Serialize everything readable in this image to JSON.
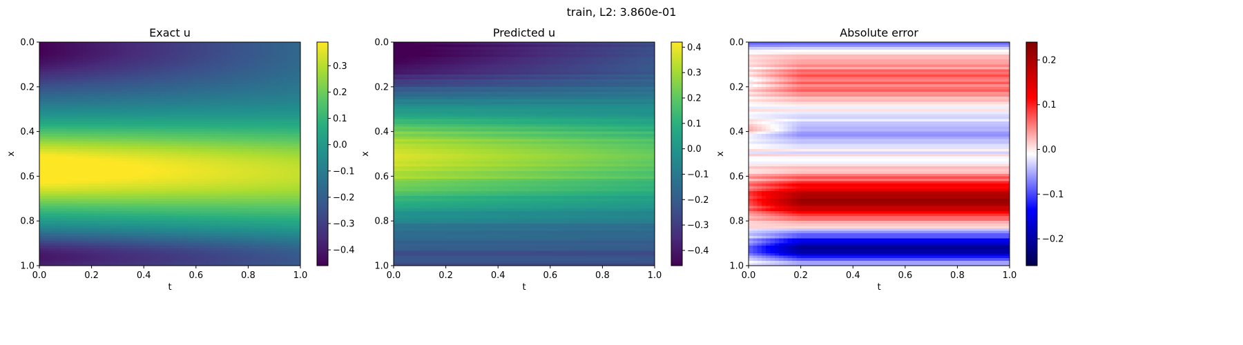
{
  "figure": {
    "suptitle": "train, L2: 3.860e-01"
  },
  "chart_data": [
    {
      "type": "heatmap",
      "title": "Exact u",
      "xlabel": "t",
      "ylabel": "x",
      "x_ticks": [
        "0.0",
        "0.2",
        "0.4",
        "0.6",
        "0.8",
        "1.0"
      ],
      "y_ticks": [
        "0.0",
        "0.2",
        "0.4",
        "0.6",
        "0.8",
        "1.0"
      ],
      "xlim": [
        0,
        1
      ],
      "ylim": [
        1,
        0
      ],
      "colormap": "viridis",
      "colorbar_range": [
        -0.46,
        0.39
      ],
      "colorbar_ticks": [
        0.3,
        0.2,
        0.1,
        0.0,
        -0.1,
        -0.2,
        -0.3,
        -0.4
      ],
      "colorbar_tick_labels": [
        "0.3",
        "0.2",
        "0.1",
        "0.0",
        "−0.1",
        "−0.2",
        "−0.3",
        "−0.4"
      ],
      "grid": false
    },
    {
      "type": "heatmap",
      "title": "Predicted u",
      "xlabel": "t",
      "ylabel": "x",
      "x_ticks": [
        "0.0",
        "0.2",
        "0.4",
        "0.6",
        "0.8",
        "1.0"
      ],
      "y_ticks": [
        "0.0",
        "0.2",
        "0.4",
        "0.6",
        "0.8",
        "1.0"
      ],
      "xlim": [
        0,
        1
      ],
      "ylim": [
        1,
        0
      ],
      "colormap": "viridis",
      "colorbar_range": [
        -0.46,
        0.42
      ],
      "colorbar_ticks": [
        0.4,
        0.3,
        0.2,
        0.1,
        0.0,
        -0.1,
        -0.2,
        -0.3,
        -0.4
      ],
      "colorbar_tick_labels": [
        "0.4",
        "0.3",
        "0.2",
        "0.1",
        "0.0",
        "−0.1",
        "−0.2",
        "−0.3",
        "−0.4"
      ],
      "grid": false
    },
    {
      "type": "heatmap",
      "title": "Absolute error",
      "xlabel": "t",
      "ylabel": "x",
      "x_ticks": [
        "0.0",
        "0.2",
        "0.4",
        "0.6",
        "0.8",
        "1.0"
      ],
      "y_ticks": [
        "0.0",
        "0.2",
        "0.4",
        "0.6",
        "0.8",
        "1.0"
      ],
      "xlim": [
        0,
        1
      ],
      "ylim": [
        1,
        0
      ],
      "colormap": "seismic",
      "colorbar_range": [
        -0.26,
        0.24
      ],
      "colorbar_ticks": [
        0.2,
        0.1,
        0.0,
        -0.1,
        -0.2
      ],
      "colorbar_tick_labels": [
        "0.2",
        "0.1",
        "0.0",
        "−0.1",
        "−0.2"
      ],
      "grid": false
    }
  ]
}
